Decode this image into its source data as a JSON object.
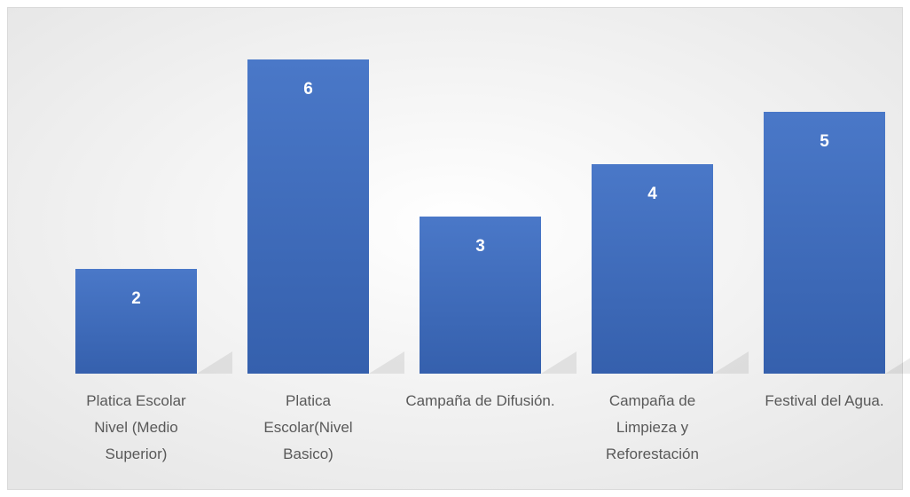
{
  "chart_data": {
    "type": "bar",
    "categories": [
      "Platica Escolar Nivel (Medio Superior)",
      "Platica Escolar(Nivel Basico)",
      "Campaña de Difusión.",
      "Campaña de Limpieza y Reforestación",
      "Festival del Agua."
    ],
    "values": [
      2,
      6,
      3,
      4,
      5
    ],
    "color": "#4472c4"
  }
}
